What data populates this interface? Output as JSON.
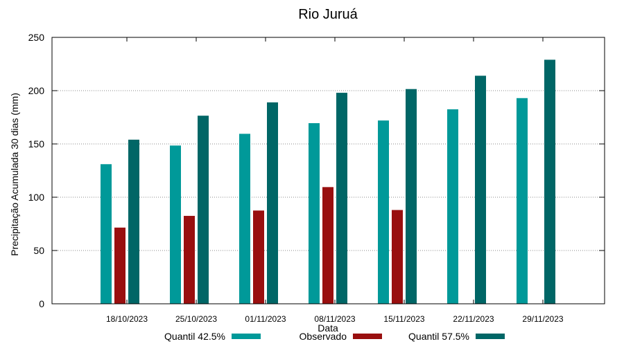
{
  "chart_data": {
    "type": "bar",
    "title": "Rio Juruá",
    "xlabel": "Data",
    "ylabel": "Precipitação Acumulada 30 dias (mm)",
    "ylim": [
      0,
      250
    ],
    "yticks": [
      0,
      50,
      100,
      150,
      200,
      250
    ],
    "grid": "horizontal dotted",
    "legend_position": "bottom",
    "categories": [
      "18/10/2023",
      "25/10/2023",
      "01/11/2023",
      "08/11/2023",
      "15/11/2023",
      "22/11/2023",
      "29/11/2023"
    ],
    "series": [
      {
        "name": "Quantil 42.5%",
        "color": "#009999",
        "values": [
          131,
          148.5,
          159.5,
          169.5,
          172,
          182.5,
          193
        ]
      },
      {
        "name": "Observado",
        "color": "#990f0f",
        "values": [
          71.5,
          82.5,
          87.5,
          109.5,
          88,
          null,
          null
        ]
      },
      {
        "name": "Quantil 57.5%",
        "color": "#006666",
        "values": [
          154,
          176.5,
          189,
          198,
          201.5,
          214,
          229
        ]
      }
    ]
  }
}
